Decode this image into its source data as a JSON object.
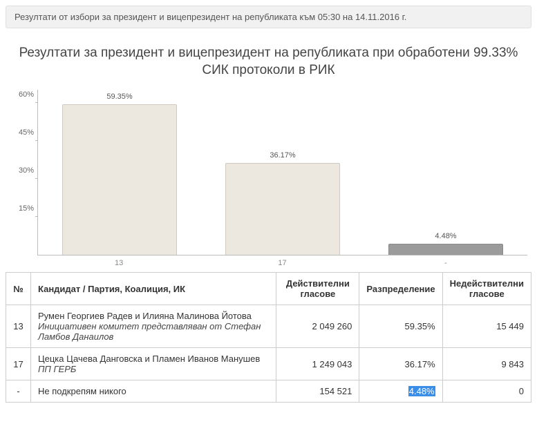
{
  "banner": "Резултати от избори за президент и вицепрезидент на републиката към 05:30 на 14.11.2016 г.",
  "title_line1": "Резултати за президент и вицепрезидент на републиката при обработени 99.33%",
  "title_line2": "СИК протоколи в РИК",
  "chart": {
    "type": "bar",
    "y_max": 65,
    "yticks": [
      15,
      30,
      45,
      60
    ],
    "ytick_labels": [
      "15%",
      "30%",
      "45%",
      "60%"
    ],
    "axis_color": "#bbbbbb",
    "tick_fontsize": 11,
    "label_fontsize": 11,
    "background_color": "#ffffff",
    "bar_width": 0.7,
    "bars": [
      {
        "x": "13",
        "value": 59.35,
        "label": "59.35%",
        "fill": "#ece8e0",
        "border": "#cfc9bf"
      },
      {
        "x": "17",
        "value": 36.17,
        "label": "36.17%",
        "fill": "#ece8e0",
        "border": "#cfc9bf"
      },
      {
        "x": "-",
        "value": 4.48,
        "label": "4.48%",
        "fill": "#9b9b9b",
        "border": "#8a8a8a"
      }
    ]
  },
  "table": {
    "headers": {
      "num": "№",
      "candidate": "Кандидат / Партия, Коалиция, ИК",
      "valid": "Действителни гласове",
      "dist": "Разпределение",
      "invalid": "Недействителни гласове"
    },
    "rows": [
      {
        "num": "13",
        "name": "Румен Георгиев Радев и Илияна Малинова Йотова",
        "party": "Инициативен комитет представляван от Стефан Ламбов Данаилов",
        "valid": "2 049 260",
        "dist": "59.35%",
        "invalid": "15 449",
        "highlight_dist": false
      },
      {
        "num": "17",
        "name": "Цецка Цачева Данговска и Пламен Иванов Манушев",
        "party": "ПП ГЕРБ",
        "valid": "1 249 043",
        "dist": "36.17%",
        "invalid": "9 843",
        "highlight_dist": false
      },
      {
        "num": "-",
        "name": "Не подкрепям никого",
        "party": "",
        "valid": "154 521",
        "dist": "4.48%",
        "invalid": "0",
        "highlight_dist": true
      }
    ]
  }
}
